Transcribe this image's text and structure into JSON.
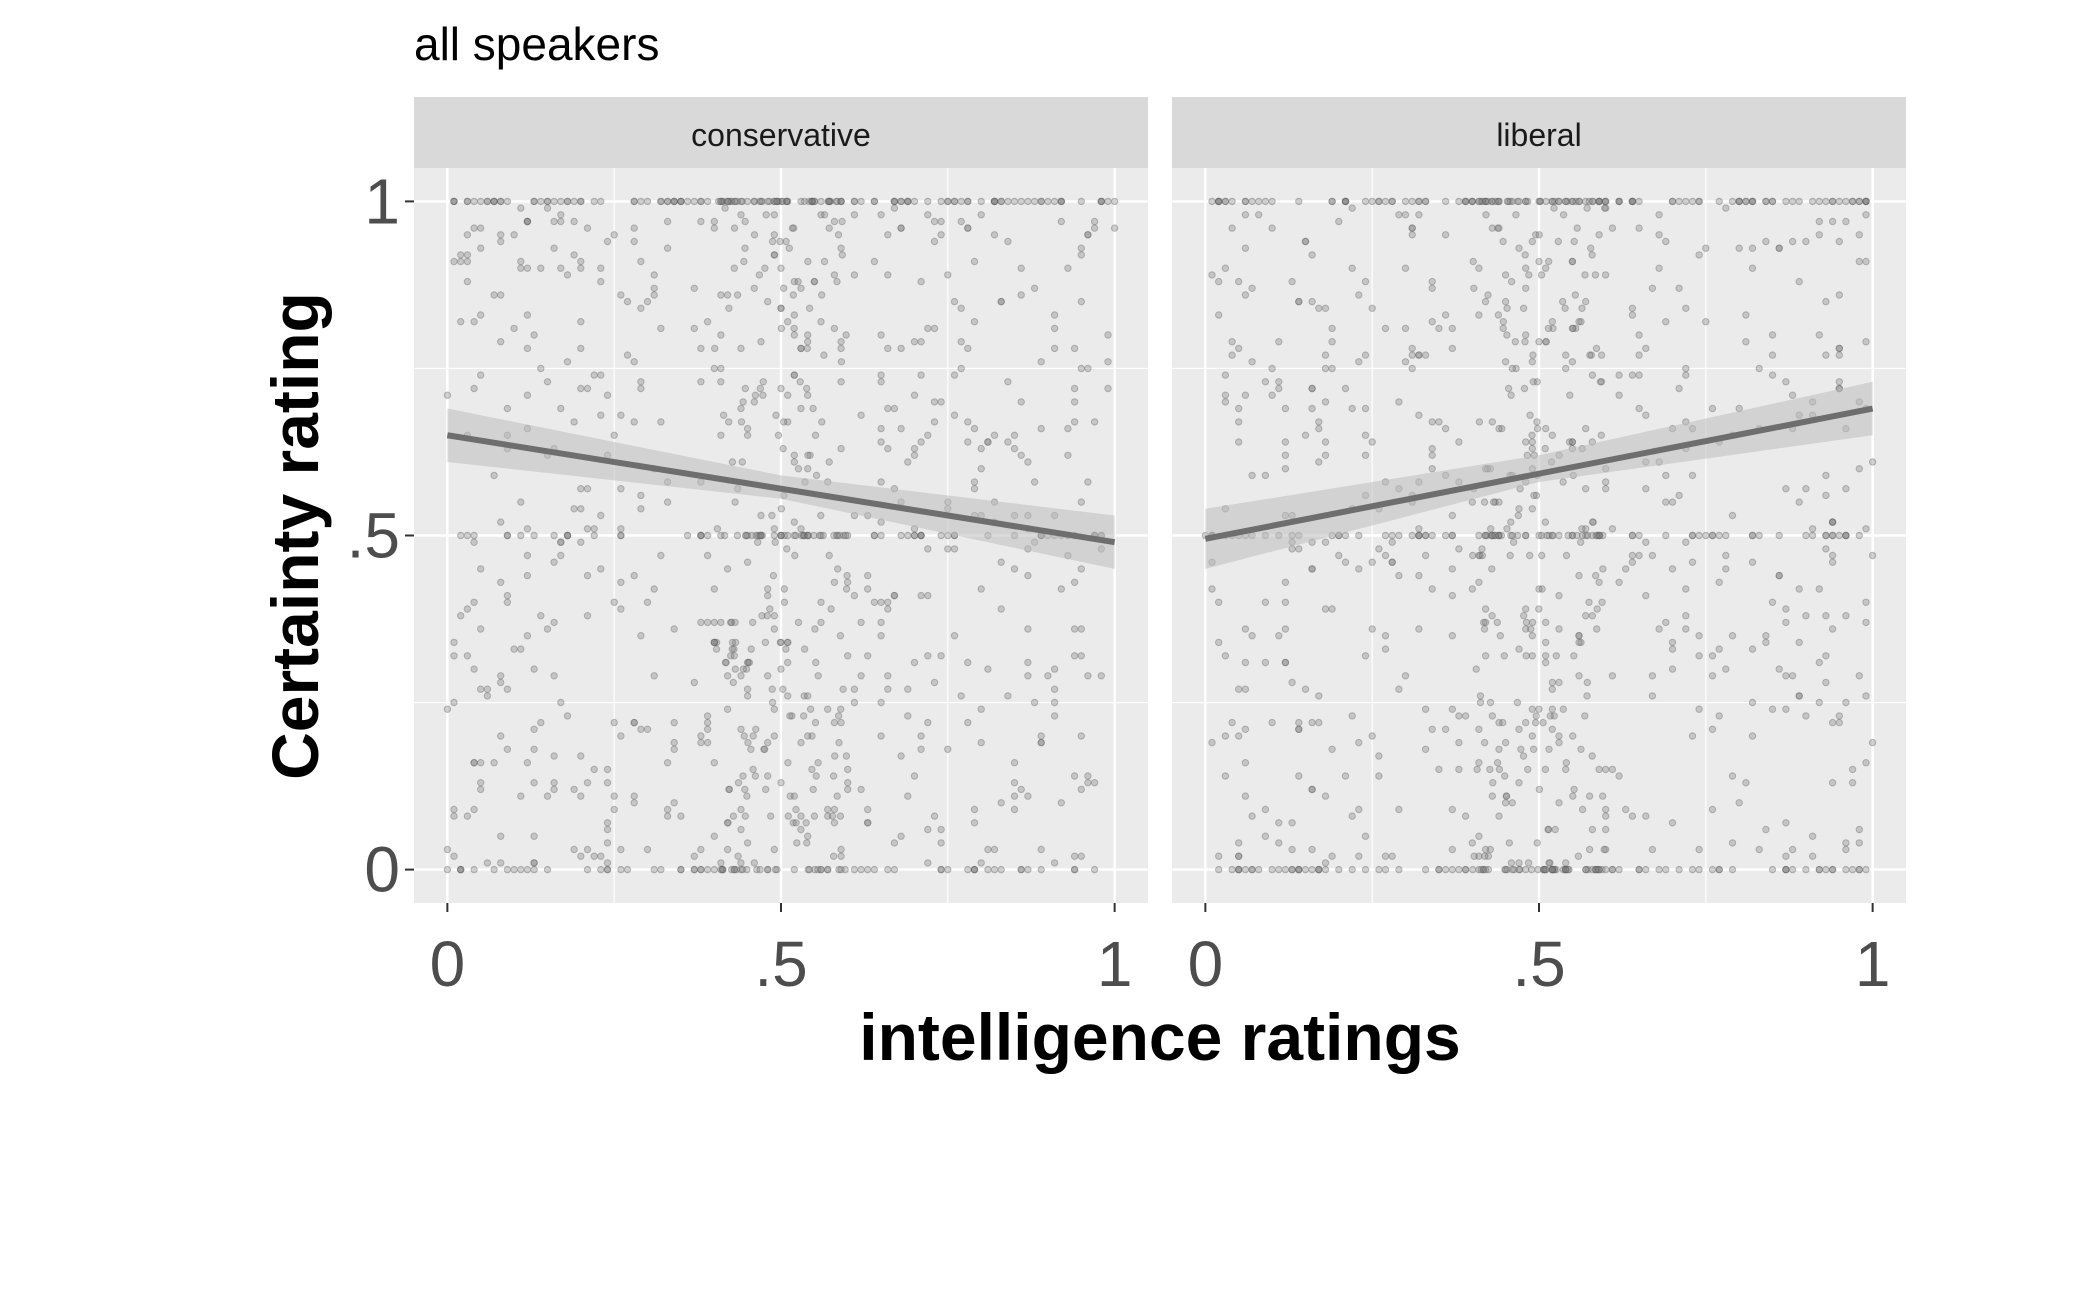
{
  "chart_data": {
    "type": "scatter",
    "title": "all speakers",
    "xlabel": "intelligence ratings",
    "ylabel": "Certainty rating",
    "xlim": [
      -0.05,
      1.05
    ],
    "ylim": [
      -0.05,
      1.05
    ],
    "x_ticks": [
      0,
      0.5,
      1
    ],
    "x_tick_labels": [
      "0",
      ".5",
      "1"
    ],
    "y_ticks": [
      0,
      0.5,
      1
    ],
    "y_tick_labels": [
      "0",
      ".5",
      "1"
    ],
    "grid": true,
    "point_color": "#7f7f7f",
    "line_color": "#6e6e6e",
    "ribbon_color": "#bdbdbd",
    "panel_bg": "#ebebeb",
    "strip_bg": "#d9d9d9",
    "panels": [
      {
        "name": "conservative",
        "fit": {
          "x": [
            0,
            1
          ],
          "y": [
            0.65,
            0.49
          ]
        },
        "ci": {
          "x": [
            0,
            0.5,
            1
          ],
          "upper": [
            0.69,
            0.59,
            0.53
          ],
          "lower": [
            0.61,
            0.555,
            0.45
          ]
        },
        "points_summary": "dense uniform scatter with clusters at y=0, y=0.5, y=1"
      },
      {
        "name": "liberal",
        "fit": {
          "x": [
            0,
            1
          ],
          "y": [
            0.495,
            0.69
          ]
        },
        "ci": {
          "x": [
            0,
            0.5,
            1
          ],
          "upper": [
            0.54,
            0.62,
            0.73
          ],
          "lower": [
            0.45,
            0.58,
            0.65
          ]
        },
        "points_summary": "dense uniform scatter with clusters at y=0, y=0.5, y=1"
      }
    ]
  }
}
